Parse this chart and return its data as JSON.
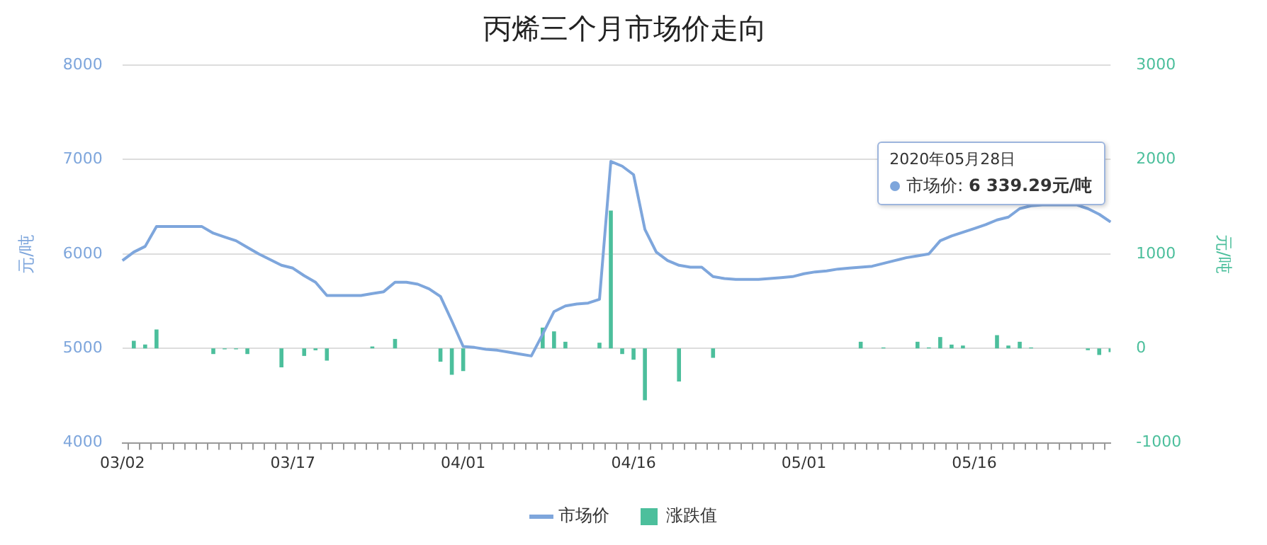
{
  "chart_data": {
    "type": "line",
    "title": "丙烯三个月市场价走向",
    "ylabel": "元/吨",
    "y2label": "元/吨",
    "categories": [
      "03/02",
      null,
      null,
      null,
      null,
      null,
      null,
      null,
      null,
      null,
      null,
      null,
      null,
      null,
      null,
      "03/17",
      null,
      null,
      null,
      null,
      null,
      null,
      null,
      null,
      null,
      null,
      null,
      null,
      null,
      null,
      "04/01",
      null,
      null,
      null,
      null,
      null,
      null,
      null,
      null,
      null,
      null,
      null,
      null,
      null,
      null,
      "04/16",
      null,
      null,
      null,
      null,
      null,
      null,
      null,
      null,
      null,
      null,
      null,
      null,
      null,
      null,
      "05/01",
      null,
      null,
      null,
      null,
      null,
      null,
      null,
      null,
      null,
      null,
      null,
      null,
      null,
      null,
      "05/16",
      null,
      null,
      null,
      null,
      null,
      null,
      null,
      null,
      null,
      null,
      null,
      null
    ],
    "series": [
      {
        "name": "市场价",
        "axis": "y",
        "color": "#7ea6dc",
        "values": [
          5930,
          6020,
          6080,
          6290,
          6290,
          6290,
          6290,
          6290,
          6220,
          6180,
          6140,
          6070,
          6000,
          5940,
          5880,
          5850,
          5770,
          5700,
          5560,
          5560,
          5560,
          5560,
          5580,
          5600,
          5700,
          5700,
          5680,
          5630,
          5550,
          5290,
          5020,
          5010,
          4990,
          4980,
          4960,
          4940,
          4920,
          5150,
          5390,
          5450,
          5470,
          5480,
          5520,
          6980,
          6930,
          6840,
          6260,
          6020,
          5930,
          5880,
          5860,
          5860,
          5760,
          5740,
          5730,
          5730,
          5730,
          5740,
          5750,
          5760,
          5790,
          5810,
          5820,
          5840,
          5850,
          5860,
          5870,
          5900,
          5930,
          5960,
          5980,
          6000,
          6140,
          6190,
          6230,
          6270,
          6310,
          6360,
          6390,
          6480,
          6510,
          6520,
          6520,
          6520,
          6520,
          6480,
          6420,
          6339.29
        ]
      },
      {
        "name": "涨跌值",
        "type": "bar",
        "axis": "y2",
        "color": "#4cbf9c",
        "values": [
          0,
          80,
          40,
          200,
          0,
          0,
          0,
          0,
          -60,
          -10,
          -10,
          -60,
          0,
          0,
          -200,
          0,
          -80,
          -20,
          -130,
          0,
          0,
          0,
          20,
          0,
          100,
          0,
          0,
          0,
          -140,
          -280,
          -240,
          0,
          0,
          0,
          0,
          0,
          0,
          220,
          180,
          70,
          0,
          0,
          60,
          1460,
          -60,
          -120,
          -550,
          0,
          0,
          -350,
          0,
          0,
          -100,
          0,
          0,
          0,
          0,
          0,
          0,
          0,
          0,
          0,
          0,
          0,
          0,
          70,
          0,
          10,
          0,
          0,
          70,
          10,
          120,
          40,
          30,
          0,
          0,
          140,
          30,
          70,
          10,
          0,
          0,
          0,
          0,
          -20,
          -70,
          -40
        ]
      }
    ],
    "ylim": [
      4000,
      8000
    ],
    "yticks": [
      4000,
      5000,
      6000,
      7000,
      8000
    ],
    "y2lim": [
      -1000,
      3000
    ],
    "y2ticks": [
      -1000,
      0,
      1000,
      2000,
      3000
    ],
    "grid": "y",
    "legend": "bottom",
    "marker": "none",
    "line_style": "solid",
    "annotations": [
      "2020年05月28日",
      "市场价: 6 339.29元/吨"
    ]
  }
}
